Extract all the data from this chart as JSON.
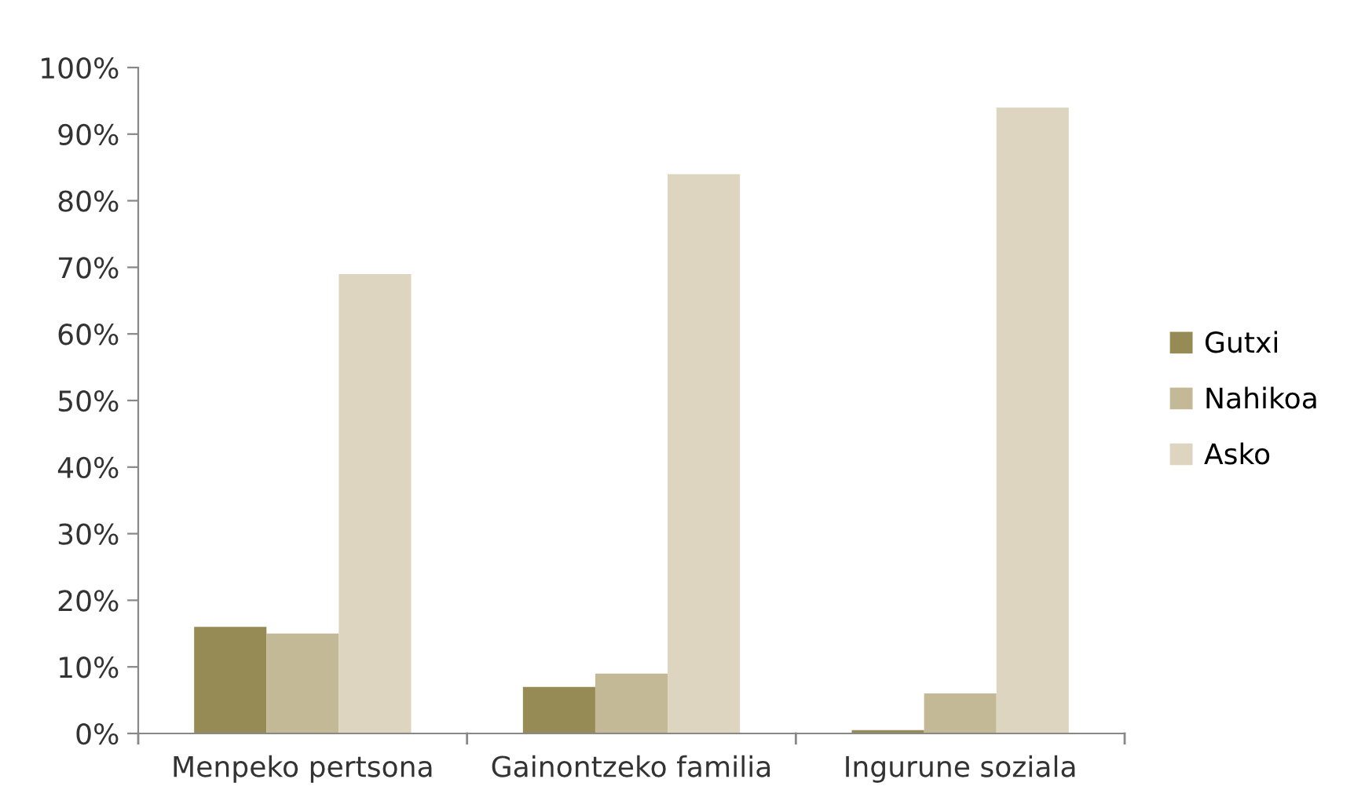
{
  "chart_data": {
    "type": "bar",
    "categories": [
      "Menpeko pertsona",
      "Gainontzeko familia",
      "Ingurune soziala"
    ],
    "series": [
      {
        "name": "Gutxi",
        "color": "#968a55",
        "values": [
          16,
          7,
          0.5
        ]
      },
      {
        "name": "Nahikoa",
        "color": "#c4b996",
        "values": [
          15,
          9,
          6
        ]
      },
      {
        "name": "Asko",
        "color": "#ddd5c0",
        "values": [
          69,
          84,
          94
        ]
      }
    ],
    "ylim": [
      0,
      100
    ],
    "yticks": [
      {
        "value": 0,
        "label": "0%"
      },
      {
        "value": 10,
        "label": "10%"
      },
      {
        "value": 20,
        "label": "20%"
      },
      {
        "value": 30,
        "label": "30%"
      },
      {
        "value": 40,
        "label": "40%"
      },
      {
        "value": 50,
        "label": "50%"
      },
      {
        "value": 60,
        "label": "60%"
      },
      {
        "value": 70,
        "label": "70%"
      },
      {
        "value": 80,
        "label": "80%"
      },
      {
        "value": 90,
        "label": "90%"
      },
      {
        "value": 100,
        "label": "100%"
      }
    ],
    "grid": false,
    "legend": "right"
  }
}
